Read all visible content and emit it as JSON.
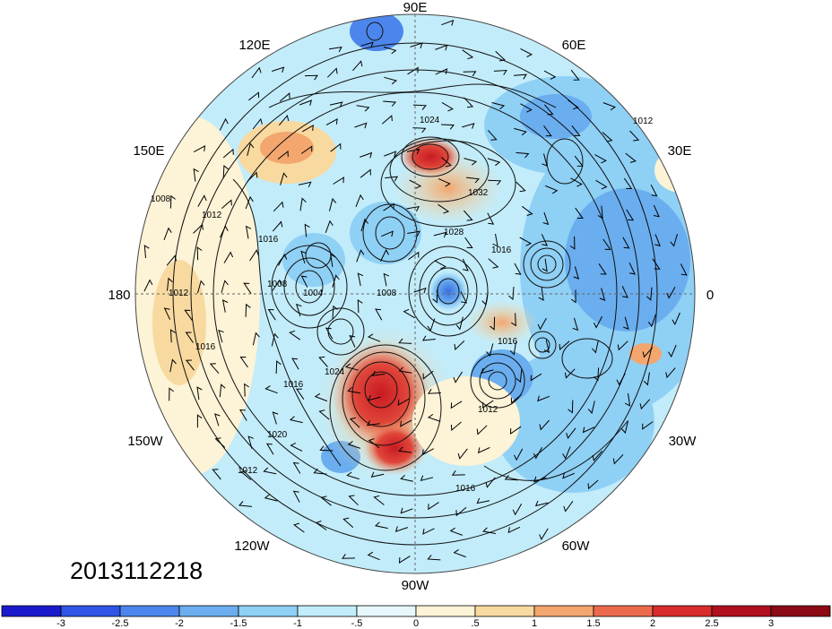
{
  "timestamp": "2013112218",
  "longitude_labels": {
    "e90": "90E",
    "e120": "120E",
    "e60": "60E",
    "e150": "150E",
    "e30": "30E",
    "e180": "180",
    "e0": "0",
    "w150": "150W",
    "w30": "30W",
    "w120": "120W",
    "w60": "60W",
    "w90": "90W"
  },
  "contour_labels": [
    "1024",
    "1032",
    "1028",
    "1016",
    "1012",
    "1008",
    "1008",
    "1012",
    "1016",
    "1004",
    "1008",
    "1016",
    "1024",
    "1016",
    "1020",
    "1012",
    "1016",
    "1012",
    "1016",
    "1012"
  ],
  "colorbar": {
    "ticks": [
      "-3",
      "-2.5",
      "-2",
      "-1.5",
      "-1",
      "-.5",
      "0",
      ".5",
      "1",
      "1.5",
      "2",
      "2.5",
      "3"
    ],
    "colors": [
      "#1a1acc",
      "#2f55e6",
      "#4c86ec",
      "#6aaef0",
      "#8fd0f5",
      "#c2ecfa",
      "#e6f8fc",
      "#fdf3d6",
      "#f8d9a0",
      "#f3a66e",
      "#ec6a4c",
      "#d92c2c",
      "#b00f1e",
      "#8c0a14"
    ]
  }
}
